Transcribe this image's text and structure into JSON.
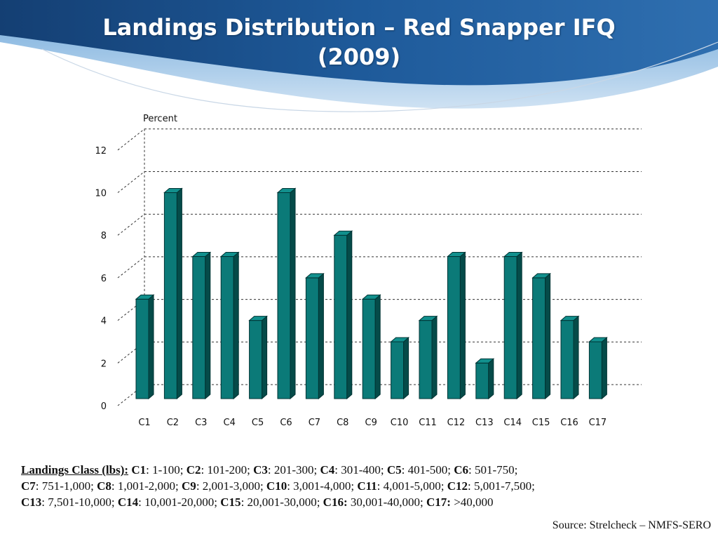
{
  "title": {
    "line1": "Landings Distribution – Red Snapper IFQ",
    "line2": "(2009)"
  },
  "colors": {
    "bar_front": "#0b7a78",
    "bar_side": "#054b49",
    "bar_top": "#11908d",
    "header_dark": "#1b4f8a",
    "header_light": "#3a7fc4"
  },
  "chart_data": {
    "type": "bar",
    "ylabel": "Percent",
    "xlabel": "",
    "ylim": [
      0,
      12
    ],
    "yticks": [
      "0",
      "2",
      "4",
      "6",
      "8",
      "10",
      "12"
    ],
    "grid": true,
    "categories": [
      "C1",
      "C2",
      "C3",
      "C4",
      "C5",
      "C6",
      "C7",
      "C8",
      "C9",
      "C10",
      "C11",
      "C12",
      "C13",
      "C14",
      "C15",
      "C16",
      "C17"
    ],
    "values": [
      5,
      10,
      7,
      7,
      4,
      10,
      6,
      8,
      5,
      3,
      4,
      7,
      2,
      7,
      6,
      4,
      3
    ]
  },
  "legend": {
    "lead": "Landings Class (lbs):",
    "items": [
      {
        "code": "C1",
        "range": ": 1-100;  "
      },
      {
        "code": "C2",
        "range": ": 101-200;  "
      },
      {
        "code": "C3",
        "range": ": 201-300;  "
      },
      {
        "code": "C4",
        "range": ": 301-400;  "
      },
      {
        "code": "C5",
        "range": ": 401-500;  "
      },
      {
        "code": "C6",
        "range": ": 501-750;"
      },
      {
        "code": "C7",
        "range": ": 751-1,000;  "
      },
      {
        "code": "C8",
        "range": ": 1,001-2,000; "
      },
      {
        "code": "C9",
        "range": ": 2,001-3,000;  "
      },
      {
        "code": "C10",
        "range": ": 3,001-4,000; "
      },
      {
        "code": "C11",
        "range": ": 4,001-5,000;  "
      },
      {
        "code": "C12",
        "range": ": 5,001-7,500;"
      },
      {
        "code": "C13",
        "range": ": 7,501-10,000;  "
      },
      {
        "code": "C14",
        "range": ": 10,001-20,000;  "
      },
      {
        "code": "C15",
        "range": ": 20,001-30,000; "
      },
      {
        "code": "C16:",
        "range": " 30,001-40,000;  "
      },
      {
        "code": "C17:",
        "range": " >40,000"
      }
    ]
  },
  "source": "Source: Strelcheck – NMFS-SERO"
}
